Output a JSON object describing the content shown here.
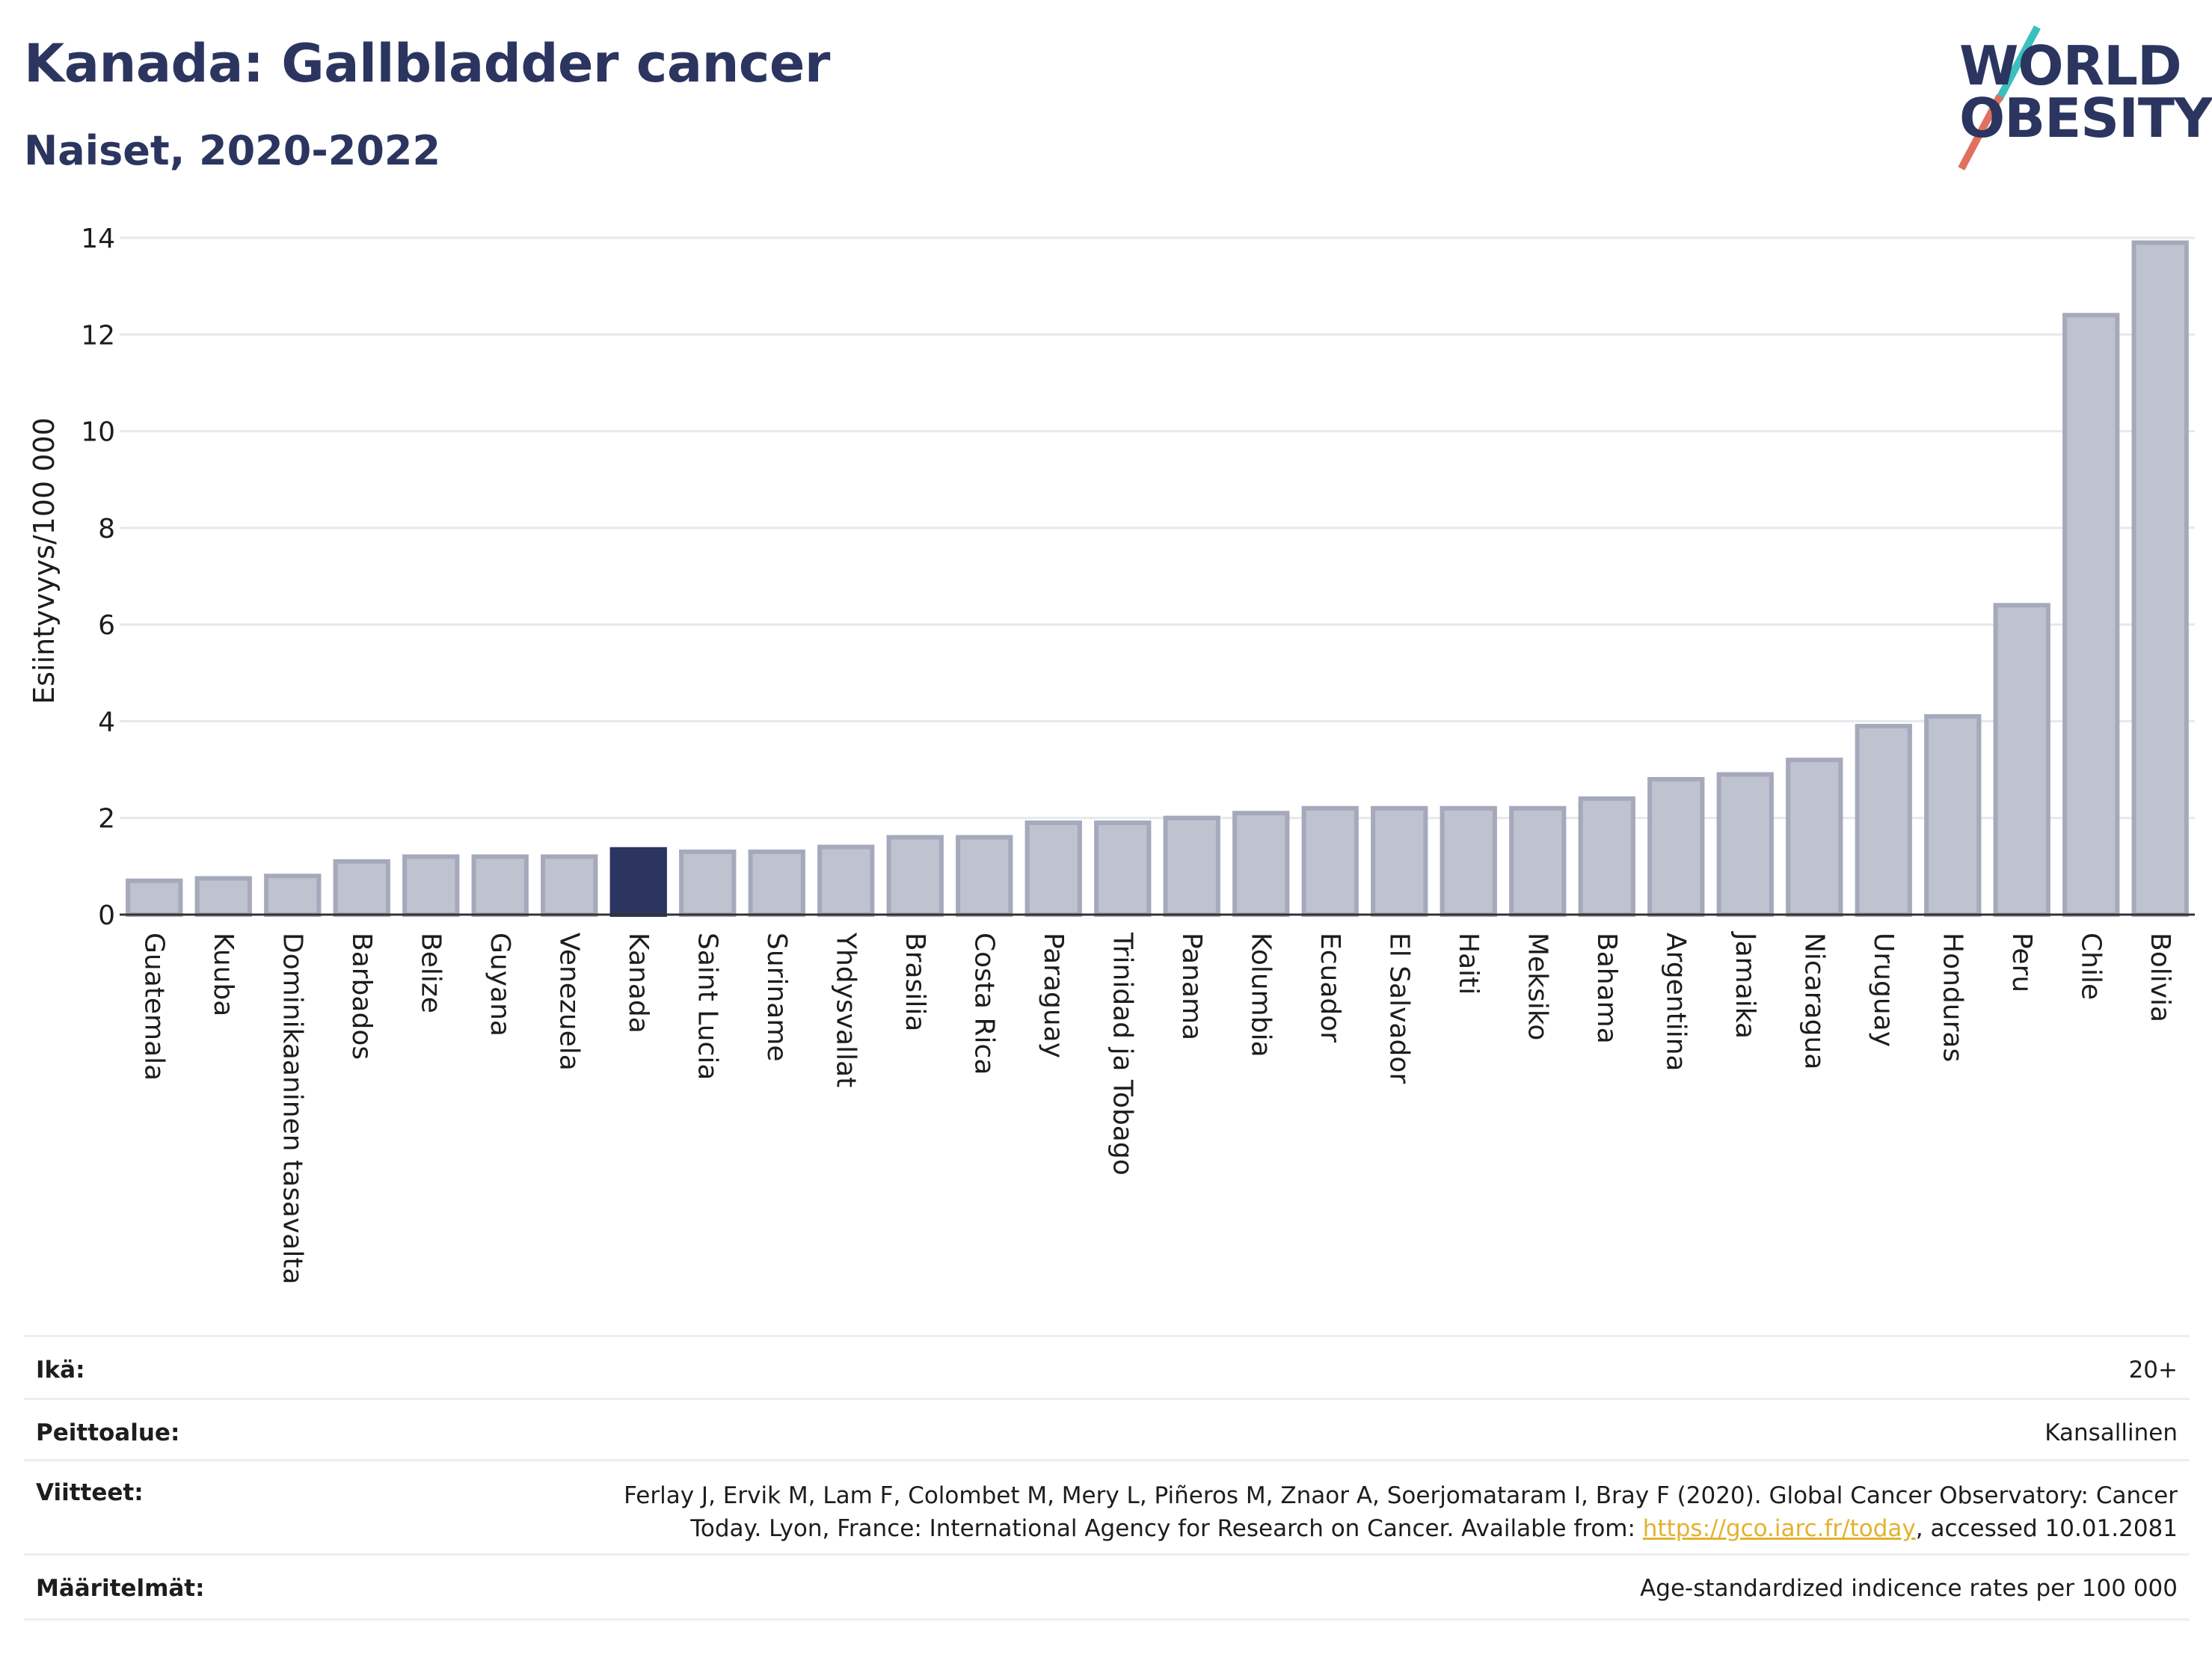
{
  "header": {
    "title": "Kanada: Gallbladder cancer",
    "subtitle": "Naiset, 2020-2022"
  },
  "logo": {
    "line1": "WORLD",
    "line2": "OBESITY",
    "colors": {
      "text": "#2b3560",
      "slash_top": "#3bbfbf",
      "slash_bottom": "#e0715e"
    }
  },
  "chart_data": {
    "type": "bar",
    "title": "Kanada: Gallbladder cancer",
    "subtitle": "Naiset, 2020-2022",
    "ylabel": "Esiintyvyys/100 000",
    "xlabel": "",
    "ylim": [
      0,
      14
    ],
    "yticks": [
      0,
      2,
      4,
      6,
      8,
      10,
      12,
      14
    ],
    "grid": true,
    "highlight": "Kanada",
    "colors": {
      "bar": "#bfc2cf",
      "bar_border": "#a5a9bb",
      "highlight": "#2b3560",
      "grid": "#e6e8ec",
      "axis": "#333333"
    },
    "categories": [
      "Guatemala",
      "Kuuba",
      "Dominikaaninen tasavalta",
      "Barbados",
      "Belize",
      "Guyana",
      "Venezuela",
      "Kanada",
      "Saint Lucia",
      "Suriname",
      "Yhdysvallat",
      "Brasilia",
      "Costa Rica",
      "Paraguay",
      "Trinidad ja Tobago",
      "Panama",
      "Kolumbia",
      "Ecuador",
      "El Salvador",
      "Haiti",
      "Meksiko",
      "Bahama",
      "Argentiina",
      "Jamaika",
      "Nicaragua",
      "Uruguay",
      "Honduras",
      "Peru",
      "Chile",
      "Bolivia"
    ],
    "values": [
      0.7,
      0.75,
      0.8,
      1.1,
      1.2,
      1.2,
      1.2,
      1.35,
      1.3,
      1.3,
      1.4,
      1.6,
      1.6,
      1.9,
      1.9,
      2.0,
      2.1,
      2.2,
      2.2,
      2.2,
      2.2,
      2.4,
      2.8,
      2.9,
      3.2,
      3.9,
      4.1,
      6.4,
      12.4,
      13.9
    ]
  },
  "footer": {
    "rows": [
      {
        "label": "Ikä:",
        "value": "20+"
      },
      {
        "label": "Peittoalue:",
        "value": "Kansallinen"
      },
      {
        "label": "Viitteet:",
        "value_line1": "Ferlay J, Ervik M, Lam F, Colombet M, Mery L, Piñeros M, Znaor A, Soerjomataram I, Bray F (2020). Global Cancer Observatory: Cancer",
        "value_line2_pre": "Today. Lyon, France: International Agency for Research on Cancer. Available from: ",
        "link": "https://gco.iarc.fr/today",
        "value_line2_post": ", accessed 10.01.2081"
      },
      {
        "label": "Määritelmät:",
        "value": "Age-standardized indicence rates per 100 000"
      }
    ]
  }
}
